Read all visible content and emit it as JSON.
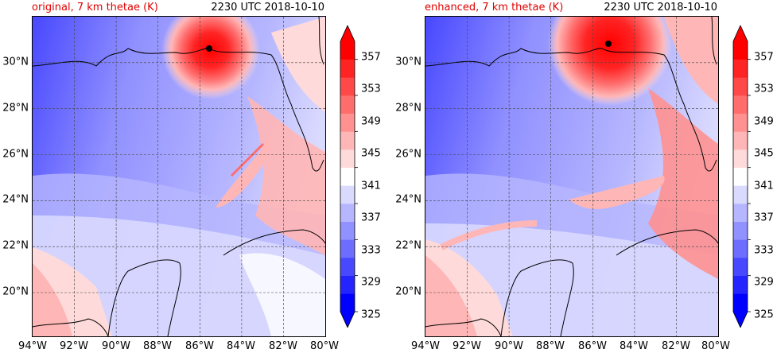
{
  "panels": [
    {
      "title": "original, 7 km thetae (K)",
      "time": "2230 UTC 2018-10-10",
      "storm_center": {
        "lon": -85.6,
        "lat": 30.7
      }
    },
    {
      "title": "enhanced, 7 km thetae (K)",
      "time": "2230 UTC 2018-10-10",
      "storm_center": {
        "lon": -85.2,
        "lat": 30.9
      }
    }
  ],
  "x_ticks": [
    "94°W",
    "92°W",
    "90°W",
    "88°W",
    "86°W",
    "84°W",
    "82°W",
    "80°W"
  ],
  "y_ticks": [
    "30°N",
    "28°N",
    "26°N",
    "24°N",
    "22°N",
    "20°N"
  ],
  "colorbar": {
    "labels": [
      "357",
      "353",
      "349",
      "345",
      "341",
      "337",
      "333",
      "329",
      "325"
    ],
    "range": [
      325,
      359
    ],
    "colors": [
      "#0000ff",
      "#2424ff",
      "#4848ff",
      "#6d6dff",
      "#9191ff",
      "#b6b6ff",
      "#dadaff",
      "#ffffff",
      "#ffdada",
      "#ffb6b6",
      "#ff9191",
      "#ff6d6d",
      "#ff4848",
      "#ff2424",
      "#ff0000"
    ]
  },
  "map": {
    "lon_range": [
      -94,
      -80
    ],
    "lat_range": [
      18.1,
      32.0
    ],
    "gridlines": true,
    "projection": "PlateCarree"
  }
}
